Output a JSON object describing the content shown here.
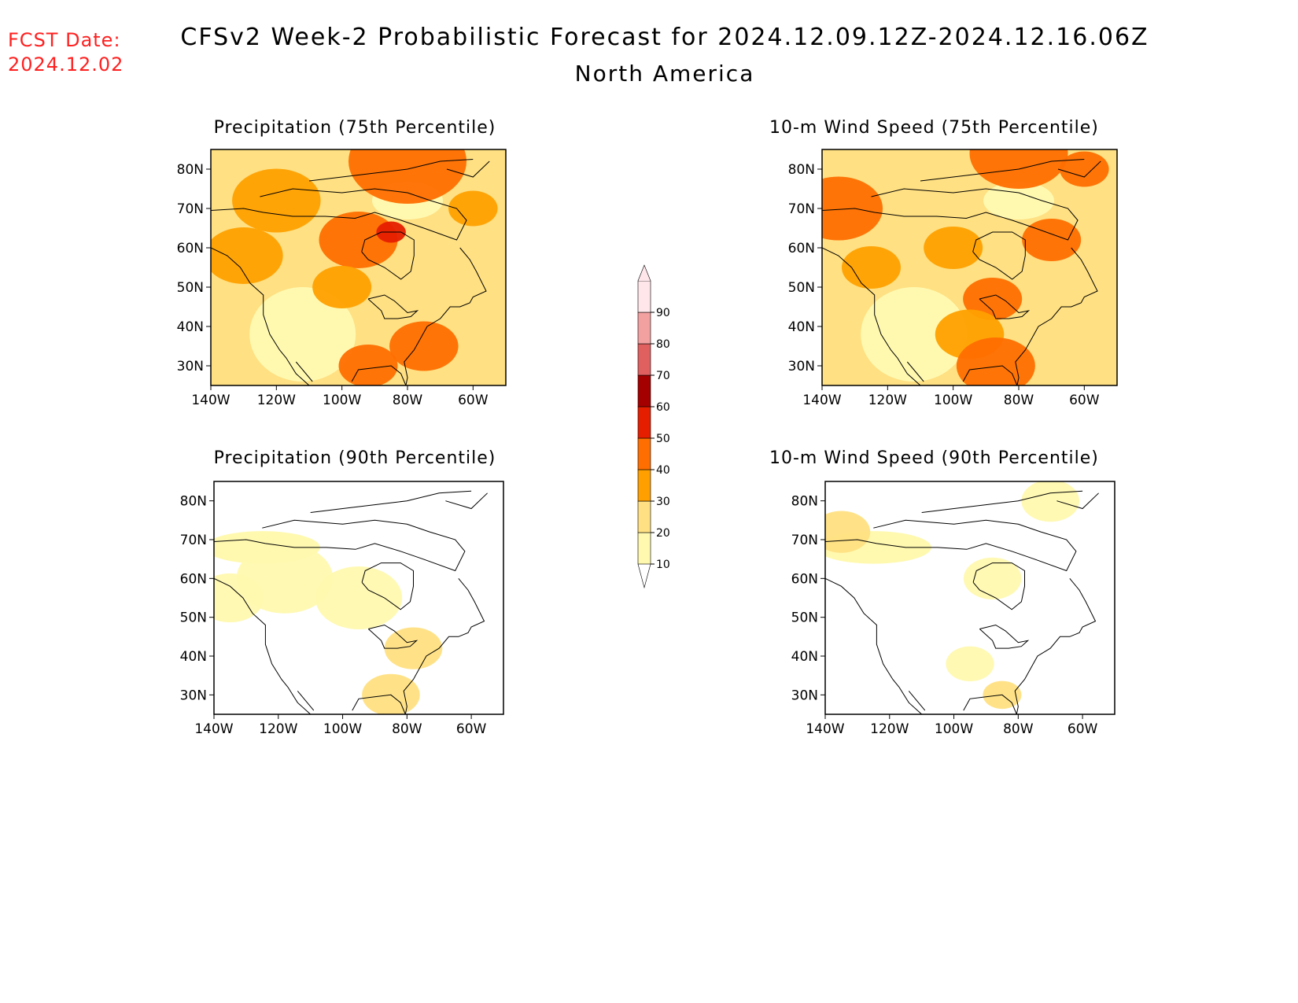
{
  "header": {
    "fcst_label": "FCST Date:",
    "fcst_value": "2024.12.02",
    "title": "CFSv2 Week-2 Probabilistic Forecast for 2024.12.09.12Z-2024.12.16.06Z",
    "subtitle": "North America"
  },
  "panels": [
    {
      "id": "precip75",
      "title": "Precipitation (75th Percentile)",
      "intensity": 0.75
    },
    {
      "id": "wind75",
      "title": "10-m Wind Speed (75th Percentile)",
      "intensity": 0.7
    },
    {
      "id": "precip90",
      "title": "Precipitation (90th Percentile)",
      "intensity": 0.25
    },
    {
      "id": "wind90",
      "title": "10-m Wind Speed (90th Percentile)",
      "intensity": 0.18
    }
  ],
  "axes": {
    "lat_labels": [
      "80N",
      "70N",
      "60N",
      "50N",
      "40N",
      "30N"
    ],
    "lon_labels": [
      "140W",
      "120W",
      "100W",
      "80W",
      "60W"
    ],
    "lat_range": [
      25,
      85
    ],
    "lon_range": [
      -140,
      -50
    ]
  },
  "colorbar": {
    "labels": [
      "10",
      "20",
      "30",
      "40",
      "50",
      "60",
      "70",
      "80",
      "90"
    ],
    "colors": [
      "#fff9b0",
      "#ffe082",
      "#ffa000",
      "#ff6e00",
      "#e61e00",
      "#a50000",
      "#e06060",
      "#f3a0a0",
      "#ffe6ea"
    ]
  }
}
